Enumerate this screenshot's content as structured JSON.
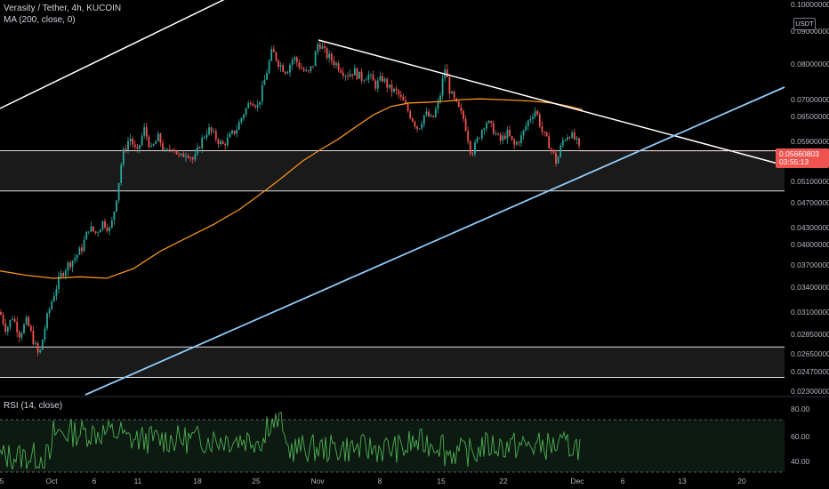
{
  "header": {
    "title": "Verasity / Tether, 4h, KUCOIN",
    "ma_legend": "MA (200, close, 0)",
    "rsi_legend": "RSI (14, close)",
    "currency": "USDT"
  },
  "last_price": {
    "value": "0.05660803",
    "countdown": "03:55:13",
    "color": "#ef5350"
  },
  "colors": {
    "up": "#26a69a",
    "down": "#ef5350",
    "ma": "#f7931a",
    "support_line": "#90caf9",
    "white_line": "#ffffff",
    "rsi": "#4caf50",
    "zone_fill": "#1a1a1a"
  },
  "chart_data": {
    "type": "candlestick",
    "price_axis": {
      "ticks": [
        "0.10000000",
        "0.09000000",
        "0.08000000",
        "0.07000000",
        "0.06500000",
        "0.05900000",
        "0.05500000",
        "0.05100000",
        "0.04700000",
        "0.04300000",
        "0.04000000",
        "0.03700000",
        "0.03400000",
        "0.03100000",
        "0.02850000",
        "0.02650000",
        "0.02470000",
        "0.02300000"
      ]
    },
    "time_axis": {
      "ticks": [
        "5",
        "Oct",
        "6",
        "11",
        "18",
        "25",
        "Nov",
        "8",
        "15",
        "22",
        "Dec",
        "6",
        "13",
        "20"
      ]
    },
    "price_path": [
      [
        0,
        0.031
      ],
      [
        7,
        0.029
      ],
      [
        14,
        0.0305
      ],
      [
        22,
        0.0285
      ],
      [
        30,
        0.03
      ],
      [
        37,
        0.028
      ],
      [
        44,
        0.0262
      ],
      [
        52,
        0.03
      ],
      [
        60,
        0.033
      ],
      [
        68,
        0.0355
      ],
      [
        76,
        0.037
      ],
      [
        84,
        0.038
      ],
      [
        92,
        0.0395
      ],
      [
        100,
        0.043
      ],
      [
        108,
        0.042
      ],
      [
        116,
        0.044
      ],
      [
        124,
        0.0425
      ],
      [
        130,
        0.047
      ],
      [
        138,
        0.056
      ],
      [
        146,
        0.06
      ],
      [
        154,
        0.056
      ],
      [
        162,
        0.062
      ],
      [
        170,
        0.057
      ],
      [
        178,
        0.06
      ],
      [
        186,
        0.056
      ],
      [
        194,
        0.058
      ],
      [
        202,
        0.055
      ],
      [
        210,
        0.0565
      ],
      [
        218,
        0.0545
      ],
      [
        226,
        0.059
      ],
      [
        234,
        0.062
      ],
      [
        242,
        0.06
      ],
      [
        250,
        0.058
      ],
      [
        258,
        0.06
      ],
      [
        266,
        0.062
      ],
      [
        274,
        0.066
      ],
      [
        282,
        0.07
      ],
      [
        290,
        0.068
      ],
      [
        298,
        0.076
      ],
      [
        306,
        0.084
      ],
      [
        314,
        0.08
      ],
      [
        322,
        0.078
      ],
      [
        330,
        0.082
      ],
      [
        338,
        0.079
      ],
      [
        346,
        0.077
      ],
      [
        352,
        0.08
      ],
      [
        358,
        0.087
      ],
      [
        366,
        0.083
      ],
      [
        374,
        0.081
      ],
      [
        382,
        0.079
      ],
      [
        390,
        0.077
      ],
      [
        398,
        0.078
      ],
      [
        406,
        0.076
      ],
      [
        414,
        0.077
      ],
      [
        422,
        0.074
      ],
      [
        430,
        0.076
      ],
      [
        438,
        0.073
      ],
      [
        446,
        0.072
      ],
      [
        454,
        0.069
      ],
      [
        462,
        0.065
      ],
      [
        470,
        0.062
      ],
      [
        478,
        0.066
      ],
      [
        486,
        0.064
      ],
      [
        494,
        0.07
      ],
      [
        500,
        0.079
      ],
      [
        506,
        0.072
      ],
      [
        514,
        0.068
      ],
      [
        522,
        0.064
      ],
      [
        530,
        0.056
      ],
      [
        538,
        0.06
      ],
      [
        546,
        0.064
      ],
      [
        554,
        0.062
      ],
      [
        562,
        0.059
      ],
      [
        570,
        0.061
      ],
      [
        578,
        0.058
      ],
      [
        586,
        0.06
      ],
      [
        594,
        0.064
      ],
      [
        602,
        0.067
      ],
      [
        610,
        0.061
      ],
      [
        618,
        0.058
      ],
      [
        626,
        0.054
      ],
      [
        632,
        0.059
      ],
      [
        640,
        0.061
      ],
      [
        648,
        0.059
      ],
      [
        652,
        0.0566
      ]
    ],
    "ma_200": [
      [
        0,
        0.0362
      ],
      [
        30,
        0.0356
      ],
      [
        60,
        0.0352
      ],
      [
        90,
        0.0354
      ],
      [
        120,
        0.0352
      ],
      [
        150,
        0.0365
      ],
      [
        180,
        0.039
      ],
      [
        210,
        0.0412
      ],
      [
        240,
        0.0435
      ],
      [
        270,
        0.046
      ],
      [
        300,
        0.0495
      ],
      [
        320,
        0.052
      ],
      [
        340,
        0.0545
      ],
      [
        360,
        0.057
      ],
      [
        380,
        0.0595
      ],
      [
        400,
        0.0625
      ],
      [
        420,
        0.0655
      ],
      [
        440,
        0.068
      ],
      [
        460,
        0.069
      ],
      [
        480,
        0.0692
      ],
      [
        500,
        0.0695
      ],
      [
        520,
        0.07
      ],
      [
        540,
        0.0702
      ],
      [
        560,
        0.07
      ],
      [
        580,
        0.0698
      ],
      [
        600,
        0.0695
      ],
      [
        620,
        0.069
      ],
      [
        640,
        0.068
      ],
      [
        655,
        0.067
      ]
    ],
    "horizontal_zones": [
      {
        "top": 0.0568,
        "bottom": 0.0492
      },
      {
        "top": 0.0272,
        "bottom": 0.0242
      }
    ],
    "rsi": {
      "upper_band": "80.00",
      "mid_band": "60.00",
      "lower_band": "40.00",
      "levels": [
        80,
        60,
        40
      ],
      "band_upper_value": 70,
      "band_lower_value": 30
    }
  }
}
